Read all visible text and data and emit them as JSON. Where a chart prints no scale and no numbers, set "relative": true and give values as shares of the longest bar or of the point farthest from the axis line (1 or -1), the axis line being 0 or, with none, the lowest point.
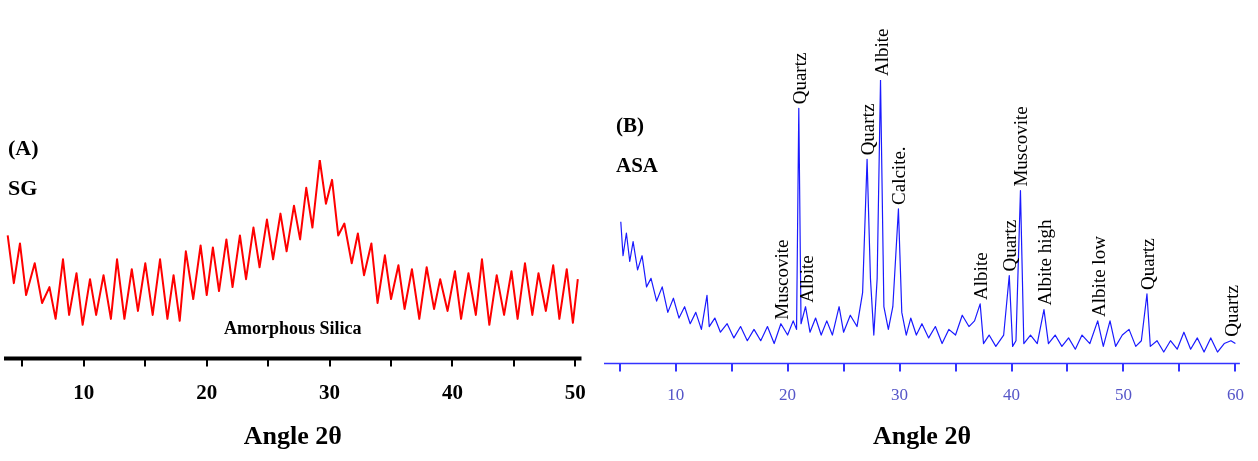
{
  "chart_data": [
    {
      "type": "line",
      "title": "(A)",
      "subtitle": "SG",
      "xlabel": "Angle 2θ",
      "relative": true,
      "xlim": [
        3.5,
        50.5
      ],
      "xticks": [
        {
          "value": 5,
          "label": null
        },
        10,
        {
          "value": 15,
          "label": null
        },
        20,
        {
          "value": 25,
          "label": null
        },
        30,
        {
          "value": 35,
          "label": null
        },
        40,
        {
          "value": 45,
          "label": null
        },
        50
      ],
      "series": [
        {
          "color": "#ff0000",
          "x": [
            3.8,
            4.3,
            4.8,
            5.3,
            6,
            6.6,
            7.2,
            7.7,
            8.3,
            8.8,
            9.4,
            9.9,
            10.5,
            11,
            11.6,
            12.2,
            12.7,
            13.3,
            13.9,
            14.4,
            15,
            15.6,
            16.2,
            16.8,
            17.3,
            17.8,
            18.3,
            18.9,
            19.5,
            20,
            20.5,
            21,
            21.6,
            22.1,
            22.7,
            23.2,
            23.8,
            24.3,
            24.9,
            25.4,
            26,
            26.5,
            27.1,
            27.6,
            28.1,
            28.6,
            29.2,
            29.7,
            30.2,
            30.7,
            31.2,
            31.8,
            32.3,
            32.8,
            33.4,
            33.9,
            34.5,
            35,
            35.6,
            36.1,
            36.7,
            37.3,
            37.9,
            38.5,
            39,
            39.6,
            40.2,
            40.7,
            41.3,
            41.9,
            42.4,
            43,
            43.6,
            44.2,
            44.8,
            45.3,
            45.9,
            46.5,
            47,
            47.6,
            48.2,
            48.7,
            49.3,
            49.8,
            50.2
          ],
          "values": [
            0.62,
            0.38,
            0.58,
            0.32,
            0.48,
            0.28,
            0.36,
            0.2,
            0.5,
            0.22,
            0.43,
            0.17,
            0.4,
            0.22,
            0.42,
            0.2,
            0.5,
            0.2,
            0.45,
            0.24,
            0.48,
            0.22,
            0.5,
            0.2,
            0.42,
            0.19,
            0.54,
            0.3,
            0.57,
            0.32,
            0.56,
            0.34,
            0.6,
            0.36,
            0.62,
            0.4,
            0.66,
            0.46,
            0.7,
            0.5,
            0.73,
            0.54,
            0.77,
            0.6,
            0.86,
            0.66,
            1.0,
            0.78,
            0.9,
            0.62,
            0.68,
            0.48,
            0.63,
            0.42,
            0.58,
            0.28,
            0.52,
            0.3,
            0.47,
            0.25,
            0.45,
            0.2,
            0.46,
            0.25,
            0.4,
            0.24,
            0.44,
            0.2,
            0.43,
            0.22,
            0.5,
            0.17,
            0.42,
            0.22,
            0.44,
            0.2,
            0.48,
            0.22,
            0.43,
            0.24,
            0.47,
            0.2,
            0.45,
            0.18,
            0.4
          ]
        }
      ],
      "annotations": [
        "Amorphous Silica"
      ]
    },
    {
      "type": "line",
      "title": "(B)",
      "subtitle": "ASA",
      "xlabel": "Angle 2θ",
      "relative": true,
      "xlim": [
        3.6,
        60.4
      ],
      "xticks": [
        {
          "value": 5,
          "label": null
        },
        10,
        {
          "value": 15,
          "label": null
        },
        20,
        {
          "value": 25,
          "label": null
        },
        30,
        {
          "value": 35,
          "label": null
        },
        40,
        {
          "value": 45,
          "label": null
        },
        50,
        {
          "value": 55,
          "label": null
        },
        60
      ],
      "series": [
        {
          "color": "#1a1aff",
          "x": [
            5.1,
            5.3,
            5.6,
            5.9,
            6.2,
            6.6,
            7,
            7.4,
            7.8,
            8.3,
            8.8,
            9.3,
            9.8,
            10.3,
            10.8,
            11.3,
            11.8,
            12.3,
            12.8,
            13,
            13.5,
            14,
            14.6,
            15.2,
            15.8,
            16.4,
            17,
            17.6,
            18.2,
            18.8,
            19.4,
            20,
            20.5,
            20.8,
            21,
            21.2,
            21.6,
            22,
            22.5,
            23,
            23.5,
            24,
            24.6,
            25,
            25.6,
            26.2,
            26.7,
            27.1,
            27.4,
            27.7,
            28,
            28.3,
            28.6,
            29,
            29.4,
            29.9,
            30.2,
            30.6,
            31,
            31.5,
            32,
            32.6,
            33.2,
            33.8,
            34.4,
            35,
            35.6,
            36.2,
            36.7,
            37.2,
            37.5,
            38,
            38.6,
            39.3,
            39.8,
            40.1,
            40.4,
            40.8,
            41.1,
            41.7,
            42.3,
            42.9,
            43.3,
            43.9,
            44.5,
            45.1,
            45.7,
            46.3,
            47,
            47.7,
            48.2,
            48.8,
            49.3,
            49.9,
            50.5,
            51.1,
            51.6,
            52.1,
            52.4,
            53,
            53.6,
            54.2,
            54.8,
            55.4,
            56,
            56.6,
            57.2,
            57.8,
            58.4,
            59,
            59.6,
            60
          ],
          "values": [
            0.5,
            0.38,
            0.46,
            0.36,
            0.43,
            0.33,
            0.38,
            0.27,
            0.3,
            0.22,
            0.27,
            0.18,
            0.23,
            0.16,
            0.2,
            0.14,
            0.18,
            0.12,
            0.24,
            0.13,
            0.16,
            0.11,
            0.14,
            0.09,
            0.13,
            0.08,
            0.12,
            0.08,
            0.13,
            0.07,
            0.14,
            0.1,
            0.15,
            0.12,
            0.9,
            0.14,
            0.2,
            0.11,
            0.16,
            0.1,
            0.15,
            0.1,
            0.2,
            0.11,
            0.17,
            0.13,
            0.25,
            0.72,
            0.3,
            0.1,
            0.3,
            1.0,
            0.2,
            0.12,
            0.2,
            0.545,
            0.18,
            0.1,
            0.16,
            0.1,
            0.14,
            0.09,
            0.13,
            0.07,
            0.12,
            0.1,
            0.17,
            0.13,
            0.15,
            0.21,
            0.07,
            0.1,
            0.06,
            0.1,
            0.31,
            0.06,
            0.08,
            0.61,
            0.07,
            0.1,
            0.07,
            0.19,
            0.07,
            0.1,
            0.06,
            0.09,
            0.05,
            0.1,
            0.07,
            0.15,
            0.06,
            0.15,
            0.06,
            0.1,
            0.12,
            0.06,
            0.08,
            0.245,
            0.06,
            0.08,
            0.04,
            0.08,
            0.05,
            0.11,
            0.05,
            0.09,
            0.04,
            0.09,
            0.04,
            0.07,
            0.08,
            0.07
          ]
        }
      ],
      "annotations": [
        {
          "text": "Muscovite",
          "x": 19.4,
          "y": 0.14
        },
        {
          "text": "Quartz",
          "x": 21.0,
          "y": 0.9
        },
        {
          "text": "Albite",
          "x": 21.6,
          "y": 0.2
        },
        {
          "text": "Quartz",
          "x": 27.1,
          "y": 0.72
        },
        {
          "text": "Albite",
          "x": 28.3,
          "y": 1.0
        },
        {
          "text": "Calcite.",
          "x": 29.9,
          "y": 0.545
        },
        {
          "text": "Albite",
          "x": 37.2,
          "y": 0.21
        },
        {
          "text": "Quartz",
          "x": 39.8,
          "y": 0.31
        },
        {
          "text": "Muscovite",
          "x": 40.8,
          "y": 0.61
        },
        {
          "text": "Albite high",
          "x": 42.9,
          "y": 0.19
        },
        {
          "text": "Albite low",
          "x": 47.7,
          "y": 0.15
        },
        {
          "text": "Quartz",
          "x": 52.1,
          "y": 0.245
        },
        {
          "text": "Quartz",
          "x": 59.6,
          "y": 0.08
        }
      ]
    }
  ]
}
